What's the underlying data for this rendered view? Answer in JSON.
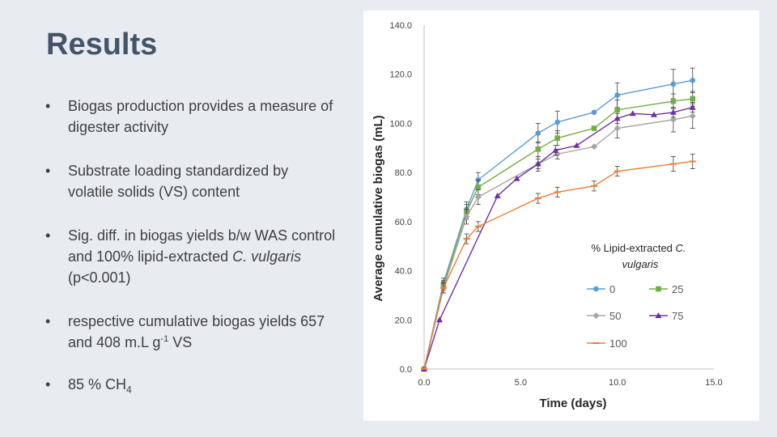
{
  "slide": {
    "title": "Results",
    "bullets": [
      {
        "text": "Biogas production provides a measure of digester activity"
      },
      {
        "text": "Substrate loading standardized by volatile solids (VS) content"
      },
      {
        "pre": "Sig. diff. in biogas yields b/w WAS control and 100% lipid-extracted ",
        "italic": "C. vulgaris",
        "post": " (p<0.001)"
      },
      {
        "pre": "respective cumulative biogas yields 657 and 408 m.L g",
        "sup": "-1",
        "post": " VS"
      },
      {
        "pre": "85 % CH",
        "sub": "4"
      }
    ],
    "bullet_glyph": "•"
  },
  "chart_data": {
    "type": "line",
    "xlabel": "Time (days)",
    "ylabel": "Average cumulative biogas (mL)",
    "xlim": [
      0,
      15
    ],
    "ylim": [
      0,
      140
    ],
    "x_ticks": [
      "0.0",
      "5.0",
      "10.0",
      "15.0"
    ],
    "y_ticks": [
      "0.0",
      "20.0",
      "40.0",
      "60.0",
      "80.0",
      "100.0",
      "120.0",
      "140.0"
    ],
    "grid": false,
    "legend": {
      "title_prefix": "% Lipid-extracted ",
      "title_italic_1": "C.",
      "title_italic_2": "vulgaris",
      "placement": "center-right"
    },
    "series": [
      {
        "name": "0",
        "color": "#5b9bd5",
        "marker": "circle",
        "points": [
          [
            0,
            0
          ],
          [
            1,
            35
          ],
          [
            2.2,
            65
          ],
          [
            2.8,
            77
          ],
          [
            5.9,
            96
          ],
          [
            6.9,
            100.5
          ],
          [
            8.8,
            104.5
          ],
          [
            10.0,
            111.5
          ],
          [
            12.9,
            116
          ],
          [
            13.9,
            117.5
          ]
        ],
        "errors": [
          0,
          2,
          3,
          3,
          4,
          4.5,
          0,
          5,
          6,
          5
        ]
      },
      {
        "name": "25",
        "color": "#70ad47",
        "marker": "square",
        "points": [
          [
            0,
            0
          ],
          [
            1,
            34
          ],
          [
            2.2,
            64
          ],
          [
            2.8,
            74
          ],
          [
            5.9,
            89.5
          ],
          [
            6.9,
            94
          ],
          [
            8.8,
            98
          ],
          [
            10.0,
            105.5
          ],
          [
            12.9,
            109
          ],
          [
            13.9,
            110
          ]
        ],
        "errors": [
          0,
          2,
          3,
          3,
          3,
          3,
          0,
          4,
          3,
          3
        ]
      },
      {
        "name": "50",
        "color": "#a5a5a5",
        "marker": "diamond",
        "points": [
          [
            0,
            0
          ],
          [
            1,
            33
          ],
          [
            2.2,
            62
          ],
          [
            2.8,
            70
          ],
          [
            5.9,
            83.5
          ],
          [
            6.9,
            87.5
          ],
          [
            8.8,
            90.5
          ],
          [
            10.0,
            98
          ],
          [
            12.9,
            101.5
          ],
          [
            13.9,
            103
          ]
        ],
        "errors": [
          0,
          2,
          3,
          3,
          3,
          2,
          0,
          4,
          5,
          5
        ]
      },
      {
        "name": "75",
        "color": "#7030a0",
        "marker": "triangle",
        "points": [
          [
            0,
            0
          ],
          [
            0.8,
            20
          ],
          [
            3.8,
            70.5
          ],
          [
            4.8,
            77.5
          ],
          [
            5.9,
            83.5
          ],
          [
            6.8,
            89
          ],
          [
            7.9,
            91
          ],
          [
            10.0,
            102
          ],
          [
            10.8,
            104
          ],
          [
            11.9,
            103.5
          ],
          [
            12.9,
            104.5
          ],
          [
            13.9,
            106.5
          ]
        ],
        "errors": [
          0,
          0,
          0,
          0,
          2,
          2,
          0,
          2,
          0,
          0,
          2,
          2
        ]
      },
      {
        "name": "100",
        "color": "#ed7d31",
        "marker": "dash",
        "points": [
          [
            0,
            0
          ],
          [
            1,
            33
          ],
          [
            2.2,
            53
          ],
          [
            2.8,
            58
          ],
          [
            5.9,
            69.5
          ],
          [
            6.9,
            72
          ],
          [
            8.8,
            74.5
          ],
          [
            10.0,
            80.5
          ],
          [
            12.9,
            83.5
          ],
          [
            13.9,
            84.5
          ]
        ],
        "errors": [
          0,
          2,
          2,
          2,
          2,
          2,
          2,
          2,
          3,
          3
        ]
      }
    ]
  }
}
